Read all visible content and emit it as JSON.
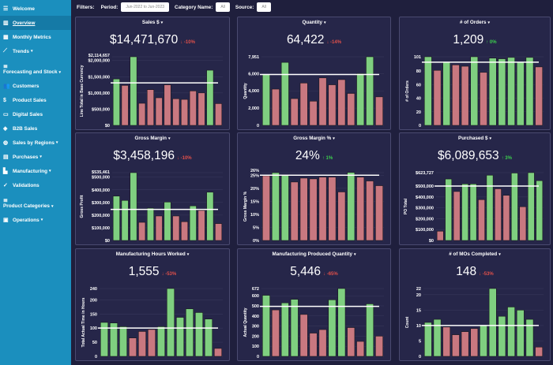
{
  "sidebar": {
    "items": [
      {
        "label": "Welcome",
        "icon": "menu-icon",
        "glyph": "☰"
      },
      {
        "label": "Overview",
        "icon": "bar-chart-icon",
        "glyph": "▥",
        "active": true
      },
      {
        "label": "Monthly Metrics",
        "icon": "table-icon",
        "glyph": "▦"
      },
      {
        "label": "Trends",
        "icon": "line-chart-icon",
        "glyph": "⟋",
        "caret": "▾"
      },
      {
        "label": "Forecasting and Stock",
        "icon": "database-icon",
        "glyph": "≣",
        "caret": "▾",
        "two": true
      },
      {
        "label": "Customers",
        "icon": "users-icon",
        "glyph": "👥"
      },
      {
        "label": "Product Sales",
        "icon": "dollar-icon",
        "glyph": "$"
      },
      {
        "label": "Digital Sales",
        "icon": "monitor-icon",
        "glyph": "▭"
      },
      {
        "label": "B2B Sales",
        "icon": "handshake-icon",
        "glyph": "◈"
      },
      {
        "label": "Sales by Regions",
        "icon": "globe-icon",
        "glyph": "◍",
        "caret": "▾"
      },
      {
        "label": "Purchases",
        "icon": "briefcase-icon",
        "glyph": "▤",
        "caret": "▾"
      },
      {
        "label": "Manufacturing",
        "icon": "industry-icon",
        "glyph": "▙",
        "caret": "▾"
      },
      {
        "label": "Validations",
        "icon": "check-icon",
        "glyph": "✓"
      },
      {
        "label": "Product Categories",
        "icon": "database-icon",
        "glyph": "≣",
        "caret": "▾",
        "two": true
      },
      {
        "label": "Operations",
        "icon": "chalkboard-icon",
        "glyph": "▣",
        "caret": "▾"
      }
    ]
  },
  "filters": {
    "label": "Filters:",
    "period_label": "Period:",
    "period_value": "Jun-2022 to Jun-2023",
    "category_label": "Category Name:",
    "category_value": "All",
    "source_label": "Source:",
    "source_value": "All"
  },
  "colors": {
    "above": "#7fcf80",
    "below": "#c97880",
    "reference_line": "#ffffff"
  },
  "panels": [
    {
      "title": "Sales $",
      "caret": "▾",
      "kpi": "$14,471,670",
      "change": "↓ -10%",
      "direction": "down",
      "chart_data": {
        "type": "bar",
        "ylabel": "Line Total in Base Currency",
        "ylim": [
          0,
          2114657
        ],
        "ticks": [
          [
            0,
            "$0"
          ],
          [
            500000,
            "$500,000"
          ],
          [
            1000000,
            "$1,000,000"
          ],
          [
            1500000,
            "$1,500,000"
          ],
          [
            2000000,
            "$2,000,000"
          ],
          [
            2114657,
            "$2,114,657"
          ]
        ],
        "reference": 1310000,
        "values": [
          1430000,
          1230000,
          2114657,
          680000,
          1100000,
          850000,
          1250000,
          820000,
          800000,
          1060000,
          1000000,
          1700000,
          670000
        ]
      }
    },
    {
      "title": "Quantity",
      "caret": "▾",
      "kpi": "64,422",
      "change": "↓ -14%",
      "direction": "down",
      "chart_data": {
        "type": "bar",
        "ylabel": "Quantity",
        "ylim": [
          0,
          7951
        ],
        "ticks": [
          [
            0,
            "0"
          ],
          [
            2000,
            "2,000"
          ],
          [
            4000,
            "4,000"
          ],
          [
            6000,
            "6,000"
          ],
          [
            7951,
            "7,951"
          ]
        ],
        "reference": 5900,
        "values": [
          5900,
          4200,
          7300,
          3100,
          4900,
          2800,
          5500,
          4700,
          5300,
          3700,
          6000,
          7951,
          3300
        ]
      }
    },
    {
      "title": "# of Orders",
      "caret": "▾",
      "kpi": "1,209",
      "change": "↑ 0%",
      "direction": "up",
      "chart_data": {
        "type": "bar",
        "ylabel": "# of Orders",
        "ylim": [
          0,
          101
        ],
        "ticks": [
          [
            0,
            "0"
          ],
          [
            20,
            "20"
          ],
          [
            40,
            "40"
          ],
          [
            60,
            "60"
          ],
          [
            80,
            "80"
          ],
          [
            101,
            "101"
          ]
        ],
        "reference": 93,
        "values": [
          101,
          81,
          93,
          89,
          87,
          101,
          78,
          99,
          98,
          100,
          93,
          100,
          86
        ]
      }
    },
    {
      "title": "Gross Margin",
      "caret": "▾",
      "kpi": "$3,458,196",
      "change": "↓ -10%",
      "direction": "down",
      "chart_data": {
        "type": "bar",
        "ylabel": "Gross Profit",
        "ylim": [
          0,
          535461
        ],
        "ticks": [
          [
            0,
            "$0"
          ],
          [
            100000,
            "$100,000"
          ],
          [
            200000,
            "$200,000"
          ],
          [
            300000,
            "$300,000"
          ],
          [
            400000,
            "$400,000"
          ],
          [
            500000,
            "$500,000"
          ],
          [
            535461,
            "$535,461"
          ]
        ],
        "reference": 245000,
        "values": [
          350000,
          316000,
          535461,
          143000,
          255000,
          193000,
          303000,
          193000,
          148000,
          273000,
          237000,
          381000,
          133000
        ]
      }
    },
    {
      "title": "Gross Margin %",
      "caret": "▾",
      "kpi": "24%",
      "change": "↑ 1%",
      "direction": "up",
      "chart_data": {
        "type": "bar",
        "ylabel": "Gross Margin %",
        "ylim": [
          0,
          26
        ],
        "ticks": [
          [
            0,
            "0%"
          ],
          [
            5,
            "5%"
          ],
          [
            10,
            "10%"
          ],
          [
            15,
            "15%"
          ],
          [
            20,
            "20%"
          ],
          [
            25,
            "25%"
          ],
          [
            26,
            "26%"
          ]
        ],
        "reference": 25,
        "values": [
          24.8,
          26,
          25.2,
          22.4,
          23.9,
          23.6,
          24.3,
          24.3,
          18.6,
          26.1,
          24.3,
          22.8,
          21
        ]
      }
    },
    {
      "title": "Purchased $",
      "caret": "▾",
      "kpi": "$6,089,653",
      "change": "↑ 3%",
      "direction": "up",
      "chart_data": {
        "type": "bar",
        "ylabel": "PO Total",
        "ylim": [
          0,
          623727
        ],
        "ticks": [
          [
            0,
            "$0"
          ],
          [
            100000,
            "$100,000"
          ],
          [
            200000,
            "$200,000"
          ],
          [
            300000,
            "$300,000"
          ],
          [
            400000,
            "$400,000"
          ],
          [
            500000,
            "$500,000"
          ],
          [
            623727,
            "$623,727"
          ]
        ],
        "reference": 500000,
        "values": [
          85000,
          565000,
          450000,
          520000,
          520000,
          375000,
          600000,
          475000,
          415000,
          620000,
          310000,
          623727,
          550000
        ]
      }
    },
    {
      "title": "Manufacturing Hours Worked",
      "caret": "▾",
      "kpi": "1,555",
      "change": "↓ -53%",
      "direction": "down",
      "chart_data": {
        "type": "bar",
        "ylabel": "Total Actual Time in Hours",
        "ylim": [
          0,
          240
        ],
        "ticks": [
          [
            0,
            "0"
          ],
          [
            50,
            "50"
          ],
          [
            100,
            "100"
          ],
          [
            150,
            "150"
          ],
          [
            200,
            "200"
          ],
          [
            240,
            "240"
          ]
        ],
        "reference": 100,
        "values": [
          120,
          118,
          105,
          65,
          88,
          95,
          105,
          240,
          138,
          168,
          155,
          132,
          28
        ]
      }
    },
    {
      "title": "Manufacturing Produced Quantity",
      "caret": "▾",
      "kpi": "5,446",
      "change": "↓ -65%",
      "direction": "down",
      "chart_data": {
        "type": "bar",
        "ylabel": "Actual Quantity",
        "ylim": [
          0,
          672
        ],
        "ticks": [
          [
            0,
            "0"
          ],
          [
            100,
            "100"
          ],
          [
            200,
            "200"
          ],
          [
            300,
            "300"
          ],
          [
            400,
            "400"
          ],
          [
            500,
            "500"
          ],
          [
            600,
            "600"
          ],
          [
            672,
            "672"
          ]
        ],
        "reference": 495,
        "values": [
          605,
          460,
          530,
          565,
          415,
          230,
          265,
          560,
          672,
          285,
          148,
          520,
          200
        ]
      }
    },
    {
      "title": "# of MOs Completed",
      "caret": "▾",
      "kpi": "148",
      "change": "↓ -53%",
      "direction": "down",
      "chart_data": {
        "type": "bar",
        "ylabel": "Count",
        "ylim": [
          0,
          22
        ],
        "ticks": [
          [
            0,
            "0"
          ],
          [
            5,
            "5"
          ],
          [
            10,
            "10"
          ],
          [
            15,
            "15"
          ],
          [
            20,
            "20"
          ],
          [
            22,
            "22"
          ]
        ],
        "reference": 10,
        "values": [
          11,
          12,
          9.5,
          7,
          8,
          9,
          10,
          22,
          13,
          16,
          15,
          12,
          3
        ]
      }
    }
  ]
}
